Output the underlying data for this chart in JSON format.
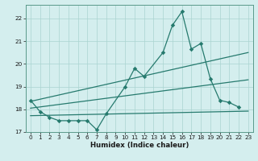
{
  "xlabel": "Humidex (Indice chaleur)",
  "bg_color": "#d4eeee",
  "line_color": "#267a6e",
  "grid_color": "#aad4d0",
  "xlim": [
    -0.5,
    23.5
  ],
  "ylim": [
    17.0,
    22.6
  ],
  "yticks": [
    17,
    18,
    19,
    20,
    21,
    22
  ],
  "xticks": [
    0,
    1,
    2,
    3,
    4,
    5,
    6,
    7,
    8,
    9,
    10,
    11,
    12,
    13,
    14,
    15,
    16,
    17,
    18,
    19,
    20,
    21,
    22,
    23
  ],
  "main_x": [
    0,
    1,
    2,
    3,
    4,
    5,
    6,
    7,
    8,
    10,
    11,
    12,
    14,
    15,
    16,
    17,
    18,
    19,
    20,
    21,
    22
  ],
  "main_y": [
    18.4,
    17.9,
    17.65,
    17.5,
    17.5,
    17.5,
    17.5,
    17.1,
    17.8,
    19.0,
    19.8,
    19.45,
    20.5,
    21.7,
    22.3,
    20.65,
    20.9,
    19.35,
    18.4,
    18.3,
    18.1
  ],
  "trend1_x": [
    0,
    23
  ],
  "trend1_y": [
    18.35,
    20.5
  ],
  "trend2_x": [
    0,
    23
  ],
  "trend2_y": [
    18.05,
    19.3
  ],
  "trend3_x": [
    0,
    23
  ],
  "trend3_y": [
    17.72,
    17.92
  ]
}
